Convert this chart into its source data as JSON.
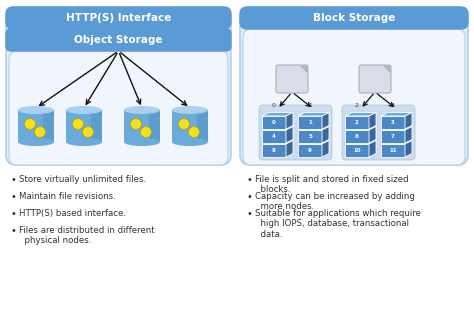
{
  "bg_color": "#ffffff",
  "left_header1_color": "#5b9bd5",
  "left_header2_color": "#5b9bd5",
  "left_header1_label": "HTTP(S) Interface",
  "left_header2_label": "Object Storage",
  "right_header_color": "#5b9bd5",
  "right_header_label": "Block Storage",
  "left_panel_bg": "#deeaf7",
  "left_inner_bg": "#f0f7ff",
  "right_panel_bg": "#deeaf7",
  "right_inner_bg": "#f0f7ff",
  "cylinder_body_color": "#6aabdc",
  "cylinder_top_color": "#a8d0f0",
  "cylinder_dark_color": "#4a88bb",
  "dot_color": "#f5e020",
  "dot_edge_color": "#b8a000",
  "block_face_color": "#4a88c8",
  "block_top_color": "#6aaae0",
  "block_side_color": "#3a6898",
  "block_bg_color": "#ccdcee",
  "server_face_color": "#d8dde8",
  "server_edge_color": "#a0a8b8",
  "arrow_color": "#111111",
  "text_color": "#333333",
  "header_text_color": "#ffffff",
  "bullet_color": "#333333",
  "font_size_header": 7.5,
  "font_size_bullet": 6.2,
  "left_bullets": [
    "Store virtually unlimited files.",
    "Maintain file revisions.",
    "HTTP(S) based interface.",
    "Files are distributed in different\n  physical nodes."
  ],
  "right_bullets": [
    "File is split and stored in fixed sized\n  blocks.",
    "Capacity can be increased by adding\n  more nodes.",
    "Suitable for applications which require\n  high IOPS, database, transactional\n  data."
  ]
}
